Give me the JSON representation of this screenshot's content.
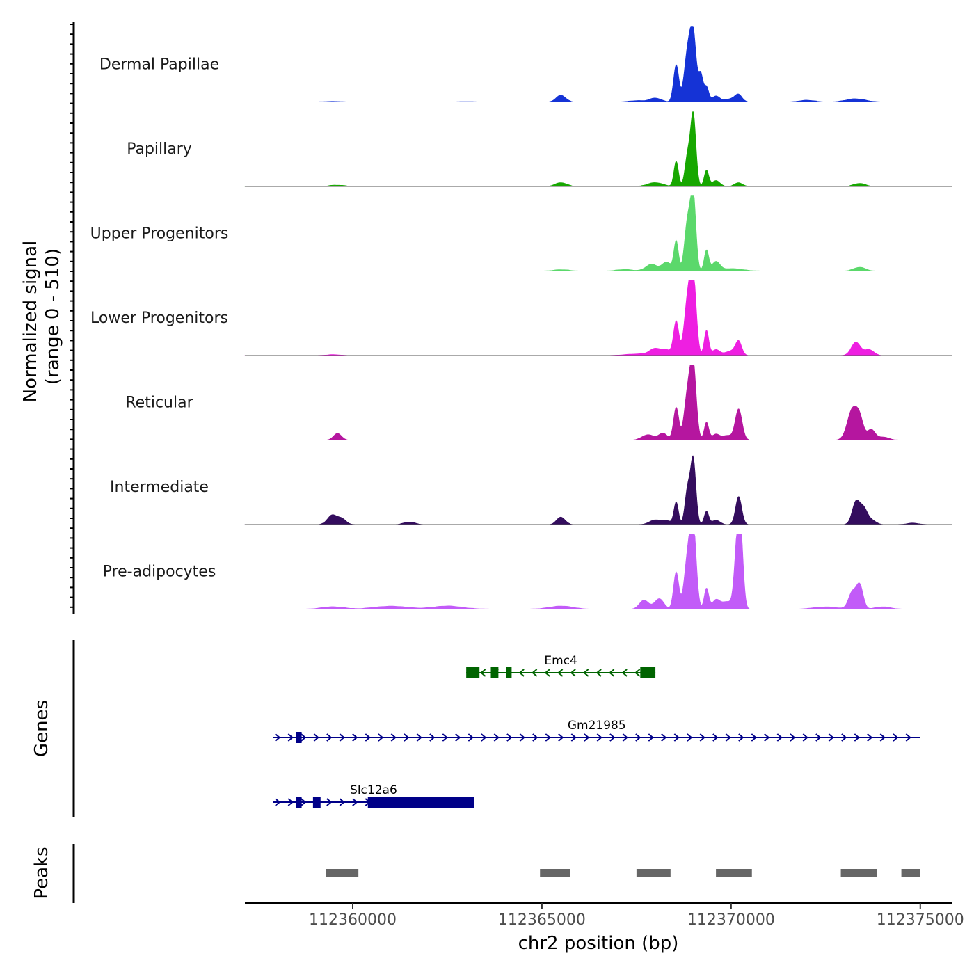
{
  "chart_data": {
    "type": "area",
    "title": "",
    "ylabel_line1": "Normalized signal",
    "ylabel_line2": "(range 0 - 510)",
    "xlabel": "chr2 position (bp)",
    "xlim": [
      112357150,
      112375850
    ],
    "ylim": [
      0,
      510
    ],
    "xticks": [
      {
        "value": 112360000,
        "label": "112360000"
      },
      {
        "value": 112365000,
        "label": "112365000"
      },
      {
        "value": 112370000,
        "label": "112370000"
      },
      {
        "value": 112375000,
        "label": "112375000"
      }
    ],
    "series": [
      {
        "name": "Dermal Papillae",
        "color": "#1533D6",
        "peaks": [
          [
            112359500,
            3,
            200
          ],
          [
            112363000,
            2,
            200
          ],
          [
            112365500,
            45,
            120
          ],
          [
            112367500,
            8,
            200
          ],
          [
            112368000,
            25,
            150
          ],
          [
            112368550,
            250,
            70
          ],
          [
            112368850,
            320,
            90
          ],
          [
            112369000,
            440,
            80
          ],
          [
            112369200,
            180,
            60
          ],
          [
            112369350,
            100,
            60
          ],
          [
            112369600,
            40,
            100
          ],
          [
            112370000,
            20,
            150
          ],
          [
            112370200,
            45,
            90
          ],
          [
            112372000,
            10,
            200
          ],
          [
            112373300,
            20,
            250
          ]
        ]
      },
      {
        "name": "Papillary",
        "color": "#17A700",
        "peaks": [
          [
            112359600,
            8,
            200
          ],
          [
            112365500,
            25,
            150
          ],
          [
            112368000,
            25,
            200
          ],
          [
            112368550,
            170,
            60
          ],
          [
            112368850,
            200,
            70
          ],
          [
            112369000,
            490,
            70
          ],
          [
            112369350,
            110,
            60
          ],
          [
            112369600,
            40,
            100
          ],
          [
            112370200,
            25,
            100
          ],
          [
            112373400,
            20,
            150
          ]
        ]
      },
      {
        "name": "Upper Progenitors",
        "color": "#5BD86B",
        "peaks": [
          [
            112365500,
            8,
            200
          ],
          [
            112367200,
            10,
            200
          ],
          [
            112367900,
            45,
            150
          ],
          [
            112368300,
            60,
            120
          ],
          [
            112368550,
            200,
            60
          ],
          [
            112368850,
            330,
            80
          ],
          [
            112369000,
            510,
            70
          ],
          [
            112369350,
            140,
            60
          ],
          [
            112369600,
            60,
            100
          ],
          [
            112370000,
            15,
            300
          ],
          [
            112373400,
            25,
            150
          ]
        ]
      },
      {
        "name": "Lower Progenitors",
        "color": "#EE1FE1",
        "peaks": [
          [
            112359500,
            5,
            200
          ],
          [
            112367500,
            10,
            300
          ],
          [
            112368000,
            45,
            150
          ],
          [
            112368300,
            35,
            120
          ],
          [
            112368550,
            230,
            70
          ],
          [
            112368850,
            360,
            90
          ],
          [
            112369000,
            520,
            80
          ],
          [
            112369350,
            170,
            60
          ],
          [
            112369600,
            40,
            100
          ],
          [
            112370000,
            30,
            150
          ],
          [
            112370200,
            90,
            80
          ],
          [
            112373300,
            90,
            120
          ],
          [
            112373650,
            40,
            120
          ]
        ]
      },
      {
        "name": "Reticular",
        "color": "#B5169F",
        "peaks": [
          [
            112359600,
            45,
            100
          ],
          [
            112367800,
            35,
            150
          ],
          [
            112368200,
            45,
            120
          ],
          [
            112368550,
            220,
            70
          ],
          [
            112368850,
            300,
            90
          ],
          [
            112369000,
            490,
            80
          ],
          [
            112369350,
            120,
            60
          ],
          [
            112369600,
            40,
            100
          ],
          [
            112369900,
            30,
            120
          ],
          [
            112370200,
            210,
            90
          ],
          [
            112373200,
            200,
            130
          ],
          [
            112373400,
            130,
            100
          ],
          [
            112373700,
            70,
            100
          ],
          [
            112374000,
            20,
            150
          ]
        ]
      },
      {
        "name": "Intermediate",
        "color": "#340D5E",
        "peaks": [
          [
            112359450,
            60,
            120
          ],
          [
            112359700,
            40,
            120
          ],
          [
            112361500,
            15,
            150
          ],
          [
            112365500,
            50,
            110
          ],
          [
            112368000,
            30,
            150
          ],
          [
            112368300,
            25,
            120
          ],
          [
            112368550,
            150,
            60
          ],
          [
            112368850,
            230,
            70
          ],
          [
            112369000,
            440,
            70
          ],
          [
            112369350,
            90,
            60
          ],
          [
            112369600,
            30,
            100
          ],
          [
            112370200,
            190,
            80
          ],
          [
            112373300,
            150,
            100
          ],
          [
            112373500,
            100,
            100
          ],
          [
            112373700,
            30,
            120
          ],
          [
            112374800,
            10,
            150
          ]
        ]
      },
      {
        "name": "Pre-adipocytes",
        "color": "#C25BF8",
        "peaks": [
          [
            112359500,
            15,
            300
          ],
          [
            112361000,
            20,
            400
          ],
          [
            112362500,
            20,
            400
          ],
          [
            112365500,
            20,
            300
          ],
          [
            112367700,
            60,
            120
          ],
          [
            112368100,
            70,
            120
          ],
          [
            112368550,
            250,
            70
          ],
          [
            112368850,
            330,
            90
          ],
          [
            112369000,
            550,
            80
          ],
          [
            112369350,
            140,
            60
          ],
          [
            112369600,
            60,
            100
          ],
          [
            112369900,
            50,
            150
          ],
          [
            112370150,
            350,
            70
          ],
          [
            112370250,
            500,
            70
          ],
          [
            112372500,
            15,
            300
          ],
          [
            112373200,
            110,
            100
          ],
          [
            112373400,
            160,
            90
          ],
          [
            112374000,
            15,
            200
          ]
        ]
      }
    ]
  },
  "genes_panel": {
    "label": "Genes",
    "genes": [
      {
        "name": "Emc4",
        "strand": "-",
        "color": "#006400",
        "start": 112363000,
        "end": 112368000,
        "exons": [
          [
            112363000,
            112363350
          ],
          [
            112363650,
            112363850
          ],
          [
            112364050,
            112364200
          ],
          [
            112367600,
            112367800
          ],
          [
            112367800,
            112368000
          ]
        ]
      },
      {
        "name": "Gm21985",
        "strand": "+",
        "color": "#000088",
        "start": 112357900,
        "end": 112375000,
        "exons": [
          [
            112358500,
            112358650
          ]
        ]
      },
      {
        "name": "Slc12a6",
        "strand": "+",
        "color": "#000088",
        "start": 112357900,
        "end": 112363200,
        "exons": [
          [
            112358500,
            112358650
          ],
          [
            112358950,
            112359150
          ],
          [
            112360400,
            112363200
          ]
        ]
      }
    ]
  },
  "peaks_panel": {
    "label": "Peaks",
    "color": "#666666",
    "regions": [
      [
        112359300,
        112360150
      ],
      [
        112364950,
        112365750
      ],
      [
        112367500,
        112368400
      ],
      [
        112369600,
        112370550
      ],
      [
        112372900,
        112373850
      ],
      [
        112374500,
        112375000
      ]
    ]
  }
}
